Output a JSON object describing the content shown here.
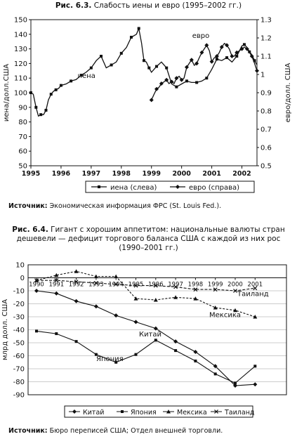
{
  "figures": [
    {
      "number": "Рис. 6.3.",
      "title": "Слабость иены и евро (1995–2002 гг.)",
      "source_label": "Источник:",
      "source_text": "Экономическая информация ФРС (St. Louis Fed.)."
    },
    {
      "number": "Рис. 6.4.",
      "title_lines": [
        "Гигант с хорошим аппетитом: национальные валюты стран",
        "дешевели — дефицит торгового баланса США с каждой из них рос",
        "(1990–2001 гг.)"
      ],
      "source_label": "Источник:",
      "source_text": "Бюро переписей США; Отдел внешней торговли."
    }
  ],
  "chart_data": [
    {
      "type": "line",
      "title": "Слабость иены и евро (1995–2002 гг.)",
      "xlabel": "",
      "ylabel": "иена/долл.США",
      "ylabel_right": "евро/долл. США",
      "xlim": [
        1995,
        2002.5
      ],
      "x_ticks": [
        1995,
        1996,
        1997,
        1998,
        1999,
        2000,
        2001,
        2002
      ],
      "ylim": [
        50,
        150
      ],
      "y_ticks": [
        50,
        60,
        70,
        80,
        90,
        100,
        110,
        120,
        130,
        140,
        150
      ],
      "ylim_right": [
        0.5,
        1.3
      ],
      "y_ticks_right": [
        "0.5",
        "0.6",
        "0.7",
        "0.8",
        "0.9",
        "1",
        "1.1",
        "1.2",
        "1.3"
      ],
      "legend": [
        "иена (слева)",
        "евро (справа)"
      ],
      "legend_position": "bottom",
      "annotations": [
        "иена",
        "евро"
      ],
      "series": [
        {
          "name": "иена (слева)",
          "axis": "left",
          "marker": "square",
          "x": [
            1995.0,
            1995.08,
            1995.17,
            1995.25,
            1995.33,
            1995.42,
            1995.5,
            1995.58,
            1995.67,
            1995.75,
            1995.83,
            1995.92,
            1996.0,
            1996.17,
            1996.33,
            1996.5,
            1996.67,
            1996.83,
            1997.0,
            1997.17,
            1997.33,
            1997.5,
            1997.67,
            1997.83,
            1998.0,
            1998.17,
            1998.33,
            1998.5,
            1998.58,
            1998.67,
            1998.75,
            1998.83,
            1998.92,
            1999.0,
            1999.17,
            1999.33,
            1999.5,
            1999.67,
            1999.83,
            2000.0,
            2000.17,
            2000.33,
            2000.5,
            2000.67,
            2000.83,
            2001.0,
            2001.17,
            2001.33,
            2001.5,
            2001.67,
            2001.83,
            2002.0,
            2002.08,
            2002.17,
            2002.25,
            2002.33,
            2002.42,
            2002.5
          ],
          "values": [
            100,
            99,
            90,
            84,
            85,
            85,
            88,
            95,
            99,
            101,
            102,
            103,
            105,
            106,
            108,
            109,
            112,
            114,
            117,
            122,
            125,
            117,
            119,
            121,
            127,
            131,
            138,
            140,
            144,
            134,
            122,
            121,
            117,
            114,
            118,
            121,
            117,
            106,
            104,
            106,
            108,
            107,
            107,
            108,
            110,
            116,
            123,
            122,
            124,
            121,
            125,
            132,
            133,
            131,
            128,
            126,
            122,
            119
          ]
        },
        {
          "name": "евро (справа)",
          "axis": "right",
          "marker": "diamond",
          "x": [
            1999.0,
            1999.08,
            1999.17,
            1999.25,
            1999.33,
            1999.42,
            1999.5,
            1999.58,
            1999.67,
            1999.75,
            1999.83,
            1999.92,
            2000.0,
            2000.08,
            2000.17,
            2000.25,
            2000.33,
            2000.42,
            2000.5,
            2000.58,
            2000.67,
            2000.75,
            2000.83,
            2000.92,
            2001.0,
            2001.08,
            2001.17,
            2001.25,
            2001.33,
            2001.42,
            2001.5,
            2001.58,
            2001.67,
            2001.75,
            2001.83,
            2001.92,
            2002.0,
            2002.08,
            2002.17,
            2002.25,
            2002.33,
            2002.42,
            2002.5
          ],
          "values": [
            0.86,
            0.89,
            0.92,
            0.93,
            0.95,
            0.96,
            0.97,
            0.95,
            0.96,
            0.95,
            0.98,
            0.99,
            0.97,
            0.98,
            1.04,
            1.06,
            1.08,
            1.05,
            1.06,
            1.09,
            1.12,
            1.14,
            1.16,
            1.13,
            1.07,
            1.09,
            1.1,
            1.12,
            1.15,
            1.17,
            1.16,
            1.14,
            1.1,
            1.1,
            1.12,
            1.13,
            1.14,
            1.15,
            1.14,
            1.12,
            1.1,
            1.06,
            1.02
          ]
        }
      ]
    },
    {
      "type": "line",
      "title": "Гигант с хорошим аппетитом: национальные валюты стран дешевели — дефицит торгового баланса США с каждой из них рос (1990–2001 гг.)",
      "xlabel": "",
      "ylabel": "млрд долл. США",
      "categories": [
        "1990",
        "1991",
        "1992",
        "1993",
        "1994",
        "1995",
        "1996",
        "1997",
        "1998",
        "1999",
        "2000",
        "2001"
      ],
      "ylim": [
        -90,
        10
      ],
      "y_ticks": [
        10,
        0,
        -10,
        -20,
        -30,
        -40,
        -50,
        -60,
        -70,
        -80,
        -90
      ],
      "legend": [
        "Китай",
        "Япония",
        "Мексика",
        "Таиланд"
      ],
      "legend_position": "bottom",
      "annotations": [
        "Таиланд",
        "Мексика",
        "Китай",
        "Япония"
      ],
      "series": [
        {
          "name": "Китай",
          "marker": "diamond",
          "values": [
            -10,
            -12,
            -18,
            -22,
            -29,
            -34,
            -39,
            -49,
            -57,
            -68,
            -83,
            -82
          ]
        },
        {
          "name": "Япония",
          "marker": "square",
          "values": [
            -41,
            -43,
            -49,
            -59,
            -65,
            -59,
            -48,
            -56,
            -64,
            -74,
            -81,
            -68
          ]
        },
        {
          "name": "Мексика",
          "marker": "triangle",
          "values": [
            -2,
            2,
            5,
            1,
            1,
            -16,
            -17,
            -15,
            -16,
            -23,
            -25,
            -30
          ]
        },
        {
          "name": "Таиланд",
          "marker": "cross",
          "values": [
            -2,
            -2,
            -3,
            -4,
            -5,
            -6,
            -6,
            -7,
            -9,
            -9,
            -10,
            -8
          ]
        }
      ]
    }
  ]
}
